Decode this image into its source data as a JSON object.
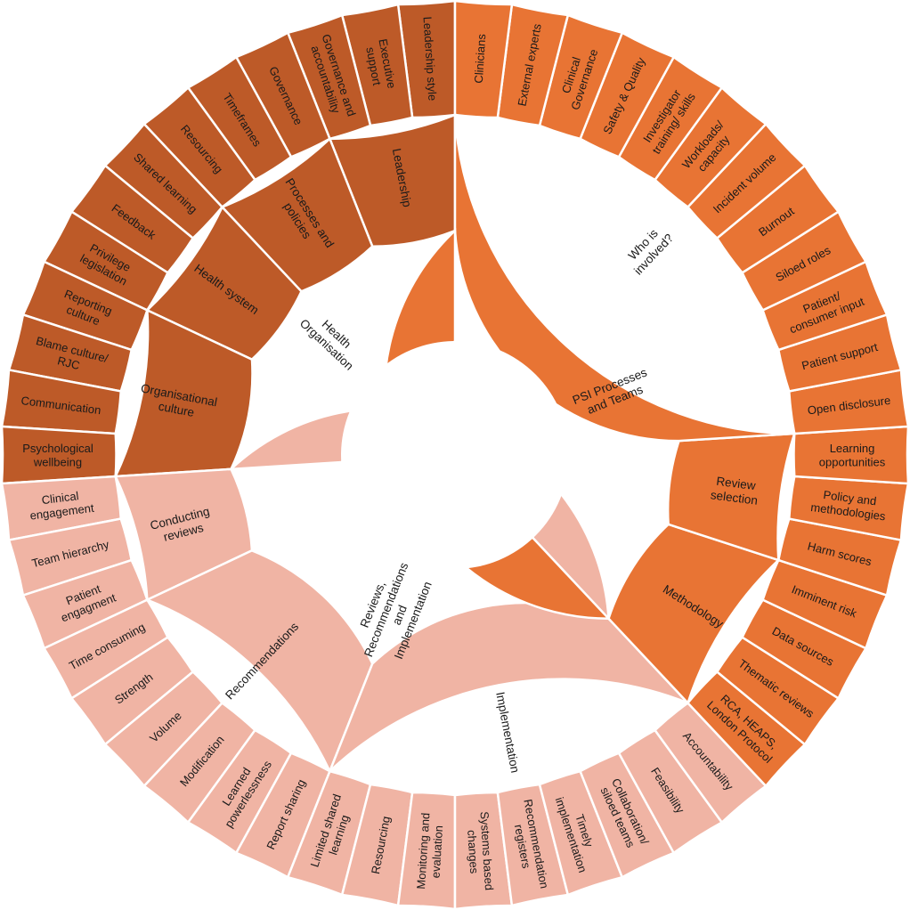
{
  "colors": {
    "health_org": "#bd5a28",
    "psi": "#e87434",
    "reviews": "#f0b4a4"
  },
  "chart_data": {
    "type": "sunburst",
    "root": [
      {
        "label": "Health Organisation",
        "color": "#bd5a28",
        "children": [
          {
            "label": "Leadership",
            "children": [
              "Leadership style",
              "Executive support",
              "Governance and accountability"
            ]
          },
          {
            "label": "Processes and policies",
            "children": [
              "Governance",
              "Timeframes",
              "Resourcing"
            ]
          },
          {
            "label": "Health system",
            "children": [
              "Shared learning",
              "Feedback",
              "Privilege legislation"
            ]
          },
          {
            "label": "Organisational culture",
            "children": [
              "Reporting culture",
              "Blame culture/ RJC",
              "Communication",
              "Psychological wellbeing"
            ]
          }
        ]
      },
      {
        "label": "Reviews, Recommendations and Implementation",
        "color": "#f0b4a4",
        "children": [
          {
            "label": "Conducting reviews",
            "children": [
              "Clinical engagement",
              "Team hierarchy",
              "Patient engagment"
            ]
          },
          {
            "label": "Recommendations",
            "children": [
              "Time consuming",
              "Strength",
              "Volume",
              "Modification",
              "Learned powerlessness",
              "Report sharing"
            ]
          },
          {
            "label": "Implementation",
            "children": [
              "Limited shared learning",
              "Resourcing",
              "Monitoring and evaluation",
              "Systems based changes",
              "Recommendation registers",
              "Timely implementation",
              "Collaboration/ siloed teams",
              "Feasibility",
              "Accountability"
            ]
          }
        ]
      },
      {
        "label": "PSI Processes and Teams",
        "color": "#e87434",
        "children": [
          {
            "label": "Methodology",
            "children": [
              "RCA, HEAPS, London Protocol",
              "Thematic reviews",
              "Data sources",
              "Imminent risk"
            ]
          },
          {
            "label": "Review selection",
            "children": [
              "Harm scores",
              "Policy and methodologies",
              "Learning opportunities"
            ]
          },
          {
            "label": "Who is involved?",
            "children": [
              "Open disclosure",
              "Patient support",
              "Patient/ consumer input",
              "Siloed roles",
              "Burnout",
              "Incident volume",
              "Workloads/ capacity",
              "Investigator training/ skills",
              "Safety & Quality",
              "Clinical Governance",
              "External experts",
              "Clinicians"
            ]
          }
        ]
      }
    ]
  }
}
